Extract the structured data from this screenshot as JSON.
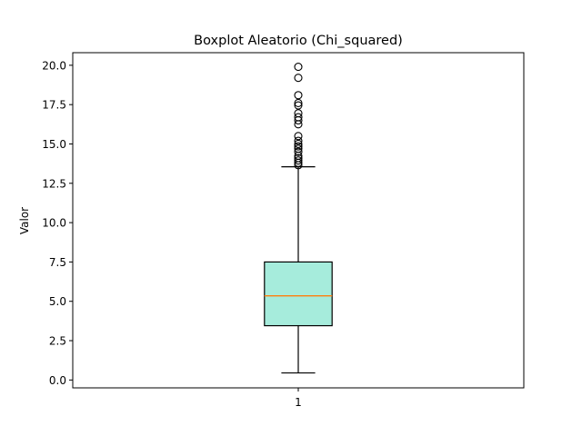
{
  "chart_data": {
    "type": "box",
    "title": "Boxplot Aleatorio (Chi_squared)",
    "xlabel": "",
    "ylabel": "Valor",
    "categories": [
      "1"
    ],
    "ylim": [
      -0.5,
      20.8
    ],
    "yticks": [
      0.0,
      2.5,
      5.0,
      7.5,
      10.0,
      12.5,
      15.0,
      17.5,
      20.0
    ],
    "ytick_labels": [
      "0.0",
      "2.5",
      "5.0",
      "7.5",
      "10.0",
      "12.5",
      "15.0",
      "17.5",
      "20.0"
    ],
    "grid": false,
    "boxes": [
      {
        "category": "1",
        "whisker_low": 0.45,
        "q1": 3.45,
        "median": 5.35,
        "q3": 7.5,
        "whisker_high": 13.55,
        "outliers": [
          13.65,
          13.8,
          13.95,
          14.1,
          14.25,
          14.5,
          14.7,
          14.85,
          15.0,
          15.2,
          15.5,
          16.25,
          16.5,
          16.7,
          16.95,
          17.45,
          17.6,
          18.1,
          19.2,
          19.9
        ]
      }
    ],
    "colors": {
      "box_fill": "#a6ecdc",
      "median": "#ff7f0e",
      "outline": "#000000"
    }
  }
}
